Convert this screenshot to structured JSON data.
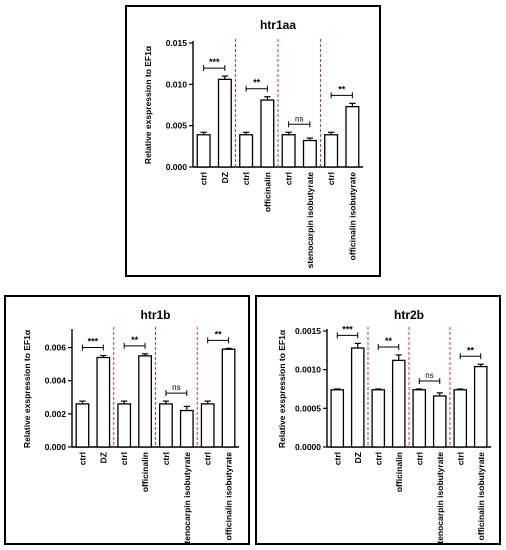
{
  "chart_data": [
    {
      "type": "bar",
      "title": "htr1aa",
      "ylabel": "Relative exspression to EF1α",
      "categories": [
        "ctrl",
        "DZ",
        "ctrl",
        "officinalin",
        "ctrl",
        "stenocarpin isobutyrate",
        "ctrl",
        "officinalin isobutyrate"
      ],
      "values": [
        0.0039,
        0.0106,
        0.0039,
        0.0081,
        0.0039,
        0.0032,
        0.0039,
        0.0073
      ],
      "errors": [
        0.0003,
        0.0004,
        0.0003,
        0.0004,
        0.0003,
        0.0003,
        0.0003,
        0.0004
      ],
      "ylim": [
        0,
        0.015
      ],
      "yticks": [
        "0.000",
        "0.005",
        "0.010",
        "0.015"
      ],
      "yticks_values": [
        0,
        0.005,
        0.01,
        0.015
      ],
      "significance": [
        "***",
        "**",
        "ns",
        "**"
      ],
      "group_separators": true
    },
    {
      "type": "bar",
      "title": "htr1b",
      "ylabel": "Relative exspression to EF1α",
      "categories": [
        "ctrl",
        "DZ",
        "ctrl",
        "officinalin",
        "ctrl",
        "stenocarpin isobutyrate",
        "ctrl",
        "officinalin isobutyrate"
      ],
      "values": [
        0.0026,
        0.0054,
        0.0026,
        0.0055,
        0.0026,
        0.0022,
        0.0026,
        0.0059
      ],
      "errors": [
        0.00017,
        0.00012,
        0.00017,
        0.00012,
        0.00017,
        0.00025,
        0.00017,
        5e-05
      ],
      "ylim": [
        0,
        0.007
      ],
      "yticks": [
        "0.000",
        "0.002",
        "0.004",
        "0.006"
      ],
      "yticks_values": [
        0,
        0.002,
        0.004,
        0.006
      ],
      "significance": [
        "***",
        "**",
        "ns",
        "**"
      ],
      "group_separators": true
    },
    {
      "type": "bar",
      "title": "htr2b",
      "ylabel": "Relative exspression to EF1α",
      "categories": [
        "ctrl",
        "DZ",
        "ctrl",
        "officinalin",
        "ctrl",
        "stenocarpin isobutyrate",
        "ctrl",
        "officinalin isobutyrate"
      ],
      "values": [
        0.00074,
        0.00128,
        0.00074,
        0.00112,
        0.00074,
        0.00066,
        0.00074,
        0.00104
      ],
      "errors": [
        1e-05,
        6e-05,
        1e-05,
        7e-05,
        1e-05,
        4e-05,
        1e-05,
        3e-05
      ],
      "ylim": [
        0,
        0.0015
      ],
      "yticks": [
        "0.0000",
        "0.0005",
        "0.0010",
        "0.0015"
      ],
      "yticks_values": [
        0,
        0.0005,
        0.001,
        0.0015
      ],
      "significance": [
        "***",
        "**",
        "ns",
        "**"
      ],
      "group_separators": true
    }
  ],
  "colors": {
    "bar_fill": "#ffffff",
    "bar_stroke": "#000000",
    "separator": "#e8322b"
  }
}
